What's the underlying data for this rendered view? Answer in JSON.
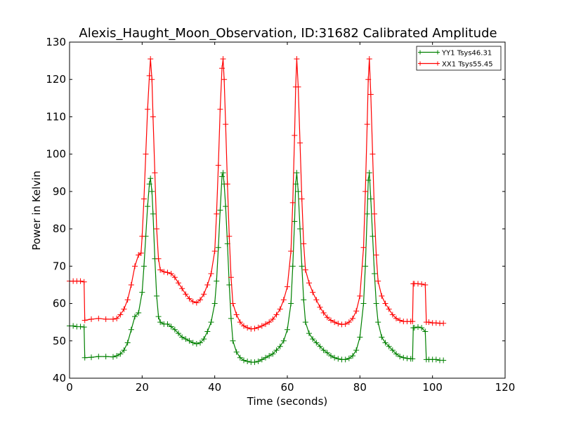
{
  "chart_data": {
    "type": "line",
    "title": "Alexis_Haught_Moon_Observation, ID:31682 Calibrated Amplitude",
    "xlabel": "Time (seconds)",
    "ylabel": "Power in Kelvin",
    "xlim": [
      0,
      120
    ],
    "ylim": [
      40,
      130
    ],
    "xticks": [
      0,
      20,
      40,
      60,
      80,
      100,
      120
    ],
    "yticks": [
      40,
      50,
      60,
      70,
      80,
      90,
      100,
      110,
      120,
      130
    ],
    "grid": false,
    "legend_position": "top-right",
    "series": [
      {
        "name": "YY1 Tsys46.31",
        "color": "#008000",
        "marker": "plus",
        "points": [
          [
            0,
            54
          ],
          [
            1,
            54
          ],
          [
            2,
            53.8
          ],
          [
            3,
            53.8
          ],
          [
            4,
            53.7
          ],
          [
            4.2,
            45.5
          ],
          [
            6,
            45.6
          ],
          [
            8,
            45.8
          ],
          [
            10,
            45.8
          ],
          [
            12,
            45.7
          ],
          [
            13,
            46
          ],
          [
            14,
            46.5
          ],
          [
            15,
            47.5
          ],
          [
            16,
            49.5
          ],
          [
            17,
            53
          ],
          [
            18,
            56.5
          ],
          [
            19,
            57.5
          ],
          [
            20,
            63
          ],
          [
            20.5,
            70
          ],
          [
            21,
            78
          ],
          [
            21.5,
            86
          ],
          [
            22,
            92
          ],
          [
            22.3,
            93.5
          ],
          [
            22.7,
            90
          ],
          [
            23,
            84
          ],
          [
            23.5,
            72
          ],
          [
            24,
            62
          ],
          [
            24.5,
            56.5
          ],
          [
            25,
            55
          ],
          [
            26,
            54.5
          ],
          [
            27,
            54.5
          ],
          [
            28,
            53.8
          ],
          [
            29,
            53
          ],
          [
            30,
            52
          ],
          [
            31,
            51
          ],
          [
            32,
            50.5
          ],
          [
            33,
            50
          ],
          [
            34,
            49.5
          ],
          [
            35,
            49.2
          ],
          [
            36,
            49.5
          ],
          [
            37,
            50.5
          ],
          [
            38,
            52.5
          ],
          [
            39,
            55
          ],
          [
            40,
            60
          ],
          [
            40.5,
            66
          ],
          [
            41,
            75
          ],
          [
            41.5,
            85
          ],
          [
            42,
            94
          ],
          [
            42.3,
            95
          ],
          [
            42.6,
            92
          ],
          [
            43,
            86
          ],
          [
            43.5,
            76
          ],
          [
            44,
            65
          ],
          [
            44.5,
            56
          ],
          [
            45,
            50
          ],
          [
            46,
            47
          ],
          [
            47,
            45.5
          ],
          [
            48,
            44.8
          ],
          [
            49,
            44.5
          ],
          [
            50,
            44.3
          ],
          [
            51,
            44.3
          ],
          [
            52,
            44.5
          ],
          [
            53,
            45
          ],
          [
            54,
            45.5
          ],
          [
            55,
            46
          ],
          [
            56,
            46.5
          ],
          [
            57,
            47.5
          ],
          [
            58,
            48.5
          ],
          [
            59,
            50
          ],
          [
            60,
            53
          ],
          [
            61,
            60
          ],
          [
            61.5,
            70
          ],
          [
            62,
            82
          ],
          [
            62.3,
            92
          ],
          [
            62.6,
            95
          ],
          [
            63,
            90
          ],
          [
            63.5,
            80
          ],
          [
            64,
            70
          ],
          [
            64.5,
            61
          ],
          [
            65,
            55
          ],
          [
            66,
            52
          ],
          [
            67,
            50.5
          ],
          [
            68,
            49.5
          ],
          [
            69,
            48.5
          ],
          [
            70,
            47.5
          ],
          [
            71,
            46.8
          ],
          [
            72,
            46
          ],
          [
            73,
            45.5
          ],
          [
            74,
            45.2
          ],
          [
            75,
            45
          ],
          [
            76,
            45
          ],
          [
            77,
            45.3
          ],
          [
            78,
            46
          ],
          [
            79,
            47.5
          ],
          [
            80,
            51
          ],
          [
            81,
            60
          ],
          [
            81.5,
            70
          ],
          [
            82,
            84
          ],
          [
            82.3,
            93
          ],
          [
            82.6,
            95
          ],
          [
            83,
            88
          ],
          [
            83.5,
            78
          ],
          [
            84,
            68
          ],
          [
            84.5,
            60
          ],
          [
            85,
            55
          ],
          [
            86,
            51
          ],
          [
            87,
            49.5
          ],
          [
            88,
            48.5
          ],
          [
            89,
            47.5
          ],
          [
            90,
            46.5
          ],
          [
            91,
            45.8
          ],
          [
            92,
            45.5
          ],
          [
            93,
            45.3
          ],
          [
            94,
            45.2
          ],
          [
            94.5,
            45.2
          ],
          [
            94.7,
            53.5
          ],
          [
            95,
            53.5
          ],
          [
            96,
            53.7
          ],
          [
            97,
            53.5
          ],
          [
            98,
            52.5
          ],
          [
            98.3,
            45
          ],
          [
            99,
            45
          ],
          [
            100,
            45
          ],
          [
            101,
            45
          ],
          [
            102,
            44.8
          ],
          [
            103,
            44.8
          ]
        ]
      },
      {
        "name": "XX1 Tsys55.45",
        "color": "#ff0000",
        "marker": "plus",
        "points": [
          [
            0,
            66
          ],
          [
            1,
            66
          ],
          [
            2,
            66
          ],
          [
            3,
            66
          ],
          [
            4,
            65.8
          ],
          [
            4.2,
            55.5
          ],
          [
            6,
            55.8
          ],
          [
            8,
            56
          ],
          [
            10,
            55.8
          ],
          [
            12,
            55.8
          ],
          [
            13,
            56
          ],
          [
            14,
            57
          ],
          [
            15,
            58.5
          ],
          [
            16,
            61
          ],
          [
            17,
            65
          ],
          [
            18,
            70
          ],
          [
            19,
            73
          ],
          [
            19.7,
            73.5
          ],
          [
            20,
            78
          ],
          [
            20.5,
            88
          ],
          [
            21,
            100
          ],
          [
            21.5,
            112
          ],
          [
            22,
            121
          ],
          [
            22.3,
            125.5
          ],
          [
            22.7,
            120
          ],
          [
            23,
            110
          ],
          [
            23.5,
            95
          ],
          [
            24,
            80
          ],
          [
            24.5,
            72
          ],
          [
            25,
            69
          ],
          [
            26,
            68.5
          ],
          [
            27,
            68.3
          ],
          [
            28,
            68
          ],
          [
            29,
            67
          ],
          [
            30,
            65.5
          ],
          [
            31,
            64
          ],
          [
            32,
            62.5
          ],
          [
            33,
            61.3
          ],
          [
            34,
            60.5
          ],
          [
            35,
            60.2
          ],
          [
            36,
            61
          ],
          [
            37,
            62.5
          ],
          [
            38,
            65
          ],
          [
            39,
            68
          ],
          [
            40,
            74
          ],
          [
            40.5,
            84
          ],
          [
            41,
            97
          ],
          [
            41.5,
            112
          ],
          [
            42,
            123
          ],
          [
            42.3,
            125.5
          ],
          [
            42.6,
            120
          ],
          [
            43,
            108
          ],
          [
            43.5,
            92
          ],
          [
            44,
            78
          ],
          [
            44.5,
            67
          ],
          [
            45,
            60
          ],
          [
            46,
            57
          ],
          [
            47,
            55
          ],
          [
            48,
            54
          ],
          [
            49,
            53.5
          ],
          [
            50,
            53.2
          ],
          [
            51,
            53.3
          ],
          [
            52,
            53.6
          ],
          [
            53,
            54
          ],
          [
            54,
            54.5
          ],
          [
            55,
            55
          ],
          [
            56,
            55.8
          ],
          [
            57,
            57
          ],
          [
            58,
            58.5
          ],
          [
            59,
            61
          ],
          [
            60,
            64.5
          ],
          [
            61,
            74
          ],
          [
            61.5,
            87
          ],
          [
            62,
            105
          ],
          [
            62.3,
            118
          ],
          [
            62.6,
            125.5
          ],
          [
            63,
            118
          ],
          [
            63.5,
            103
          ],
          [
            64,
            88
          ],
          [
            64.5,
            76
          ],
          [
            65,
            69
          ],
          [
            66,
            65.5
          ],
          [
            67,
            63
          ],
          [
            68,
            61
          ],
          [
            69,
            59
          ],
          [
            70,
            57.5
          ],
          [
            71,
            56.3
          ],
          [
            72,
            55.5
          ],
          [
            73,
            55
          ],
          [
            74,
            54.6
          ],
          [
            75,
            54.4
          ],
          [
            76,
            54.5
          ],
          [
            77,
            55
          ],
          [
            78,
            56
          ],
          [
            79,
            58
          ],
          [
            80,
            62
          ],
          [
            81,
            75
          ],
          [
            81.5,
            90
          ],
          [
            82,
            108
          ],
          [
            82.3,
            120
          ],
          [
            82.6,
            125.5
          ],
          [
            83,
            116
          ],
          [
            83.5,
            100
          ],
          [
            84,
            84
          ],
          [
            84.5,
            73
          ],
          [
            85,
            66
          ],
          [
            86,
            62
          ],
          [
            87,
            60
          ],
          [
            88,
            58.5
          ],
          [
            89,
            57
          ],
          [
            90,
            56
          ],
          [
            91,
            55.5
          ],
          [
            92,
            55.2
          ],
          [
            93,
            55.2
          ],
          [
            94,
            55.2
          ],
          [
            94.5,
            55.2
          ],
          [
            94.7,
            65.3
          ],
          [
            95,
            65.3
          ],
          [
            96,
            65.3
          ],
          [
            97,
            65.2
          ],
          [
            98,
            65
          ],
          [
            98.3,
            55
          ],
          [
            99,
            55
          ],
          [
            100,
            54.8
          ],
          [
            101,
            54.8
          ],
          [
            102,
            54.7
          ],
          [
            103,
            54.7
          ]
        ]
      }
    ]
  }
}
